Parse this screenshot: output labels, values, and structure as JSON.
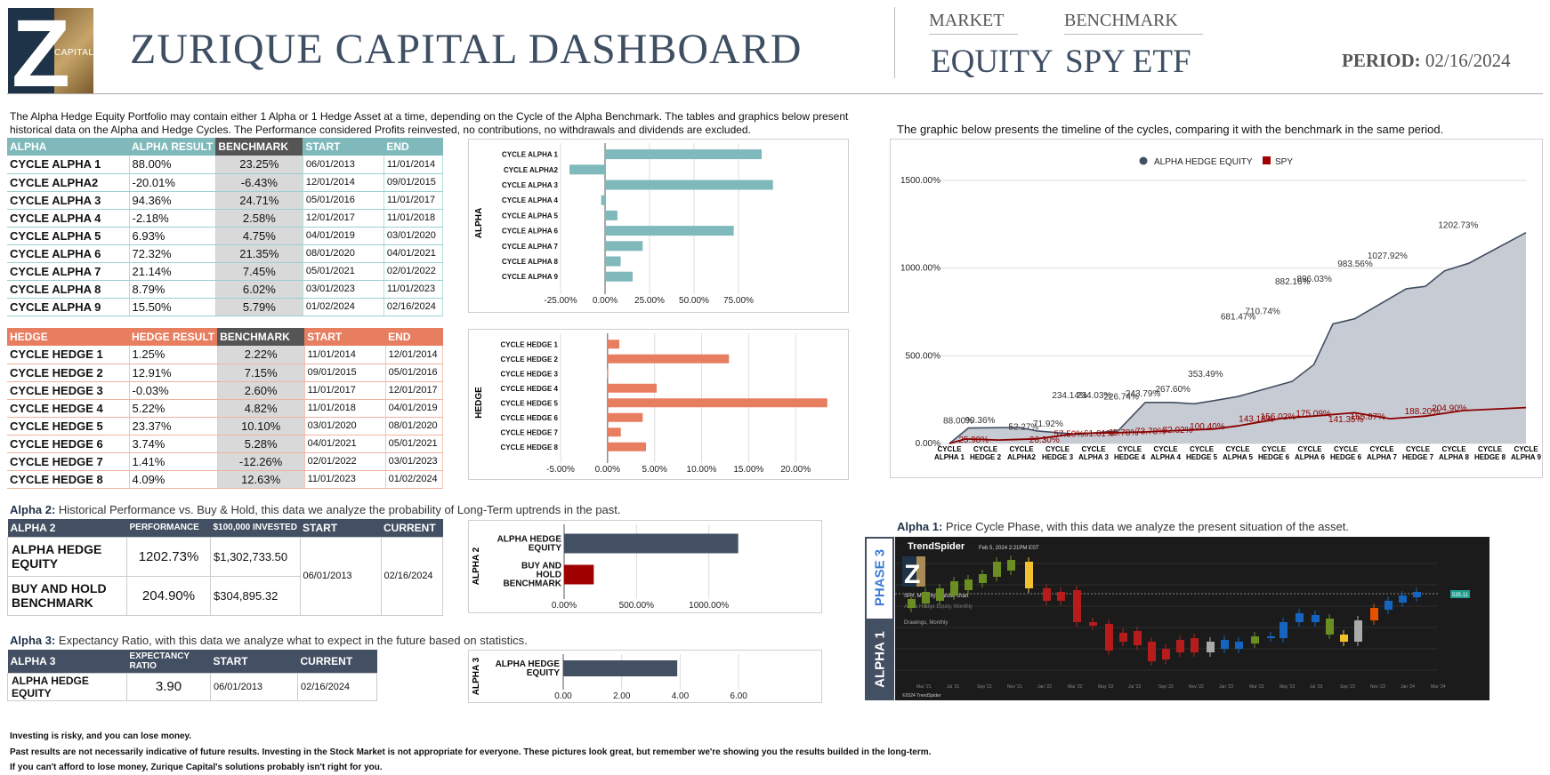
{
  "header": {
    "title": "ZURIQUE CAPITAL DASHBOARD",
    "logo_text": "CAPITAL",
    "market_label": "MARKET",
    "market_value": "EQUITY",
    "benchmark_label": "BENCHMARK",
    "benchmark_value": "SPY ETF",
    "period_label": "PERIOD:",
    "period_value": "02/16/2024"
  },
  "intro_text": "The Alpha Hedge Equity Portfolio may contain either 1 Alpha or 1 Hedge Asset at a time, depending on the Cycle of the Alpha Benchmark. The tables and graphics below present historical data on the Alpha and Hedge Cycles. The Performance considered Profits reinvested, no contributions, no withdrawals and dividends are excluded.",
  "timeline_text": "The graphic below presents the timeline of the cycles, comparing it with the benchmark in the same period.",
  "alpha_table": {
    "headers": [
      "ALPHA",
      "ALPHA RESULT",
      "BENCHMARK",
      "START",
      "END"
    ],
    "rows": [
      [
        "CYCLE ALPHA 1",
        "88.00%",
        "23.25%",
        "06/01/2013",
        "11/01/2014"
      ],
      [
        "CYCLE ALPHA2",
        "-20.01%",
        "-6.43%",
        "12/01/2014",
        "09/01/2015"
      ],
      [
        "CYCLE ALPHA 3",
        "94.36%",
        "24.71%",
        "05/01/2016",
        "11/01/2017"
      ],
      [
        "CYCLE ALPHA 4",
        "-2.18%",
        "2.58%",
        "12/01/2017",
        "11/01/2018"
      ],
      [
        "CYCLE ALPHA 5",
        "6.93%",
        "4.75%",
        "04/01/2019",
        "03/01/2020"
      ],
      [
        "CYCLE ALPHA 6",
        "72.32%",
        "21.35%",
        "08/01/2020",
        "04/01/2021"
      ],
      [
        "CYCLE ALPHA 7",
        "21.14%",
        "7.45%",
        "05/01/2021",
        "02/01/2022"
      ],
      [
        "CYCLE ALPHA 8",
        "8.79%",
        "6.02%",
        "03/01/2023",
        "11/01/2023"
      ],
      [
        "CYCLE ALPHA 9",
        "15.50%",
        "5.79%",
        "01/02/2024",
        "02/16/2024"
      ]
    ]
  },
  "hedge_table": {
    "headers": [
      "HEDGE",
      "HEDGE RESULT",
      "BENCHMARK",
      "START",
      "END"
    ],
    "rows": [
      [
        "CYCLE HEDGE 1",
        "1.25%",
        "2.22%",
        "11/01/2014",
        "12/01/2014"
      ],
      [
        "CYCLE HEDGE 2",
        "12.91%",
        "7.15%",
        "09/01/2015",
        "05/01/2016"
      ],
      [
        "CYCLE HEDGE 3",
        "-0.03%",
        "2.60%",
        "11/01/2017",
        "12/01/2017"
      ],
      [
        "CYCLE HEDGE 4",
        "5.22%",
        "4.82%",
        "11/01/2018",
        "04/01/2019"
      ],
      [
        "CYCLE HEDGE 5",
        "23.37%",
        "10.10%",
        "03/01/2020",
        "08/01/2020"
      ],
      [
        "CYCLE HEDGE 6",
        "3.74%",
        "5.28%",
        "04/01/2021",
        "05/01/2021"
      ],
      [
        "CYCLE HEDGE 7",
        "1.41%",
        "-12.26%",
        "02/01/2022",
        "03/01/2023"
      ],
      [
        "CYCLE HEDGE 8",
        "4.09%",
        "12.63%",
        "11/01/2023",
        "01/02/2024"
      ]
    ]
  },
  "alpha2": {
    "title_bold": "Alpha 2:",
    "title_rest": " Historical Performance vs. Buy & Hold, this data we analyze the probability of Long-Term uptrends in the past.",
    "headers": [
      "ALPHA 2",
      "PERFORMANCE",
      "$100,000 INVESTED",
      "START",
      "CURRENT"
    ],
    "rows": [
      [
        "ALPHA HEDGE EQUITY",
        "1202.73%",
        "$1,302,733.50"
      ],
      [
        "BUY AND HOLD BENCHMARK",
        "204.90%",
        "$304,895.32"
      ]
    ],
    "start": "06/01/2013",
    "current": "02/16/2024"
  },
  "alpha3": {
    "title_bold": "Alpha 3:",
    "title_rest": " Expectancy Ratio, with this data we analyze what to expect in the future based on statistics.",
    "headers": [
      "ALPHA 3",
      "EXPECTANCY RATIO",
      "START",
      "CURRENT"
    ],
    "row": [
      "ALPHA HEDGE EQUITY",
      "3.90",
      "06/01/2013",
      "02/16/2024"
    ]
  },
  "alpha1": {
    "title_bold": "Alpha 1:",
    "title_rest": " Price Cycle Phase, with this data we analyze the present situation of the asset.",
    "phase_label": "PHASE 3",
    "alpha_label": "ALPHA 1",
    "brand": "TrendSpider",
    "brand_date": "Feb 5, 2024 2:21PM EST",
    "chart_caption": "SPY, Monthly, Candle chart",
    "legend1": "Alpha Hedge Equity, Monthly",
    "legend2": "Drawings, Monthly",
    "copyright": "©2024 TrendSpider",
    "price_badge": "535.11",
    "x_ticks": [
      "Mar '21",
      "Jul '21",
      "Sep '21",
      "Nov '21",
      "Jan '22",
      "Mar '22",
      "May '22",
      "Jul '22",
      "Sep '22",
      "Nov '22",
      "Jan '23",
      "Mar '23",
      "May '23",
      "Jul '23",
      "Sep '23",
      "Nov '23",
      "Jan '24",
      "Mar '24"
    ]
  },
  "footer": [
    "Investing is risky, and you can lose money.",
    "Past results are not necessarily indicative of future results. Investing in the Stock Market is not appropriate for everyone. These pictures look great, but remember we're showing you the results builded in the long-term.",
    "If you can't afford to lose money, Zurique Capital's solutions probably isn't right for you."
  ],
  "chart_data": [
    {
      "type": "bar",
      "orientation": "horizontal",
      "ylabel": "ALPHA",
      "categories": [
        "CYCLE ALPHA 1",
        "CYCLE ALPHA2",
        "CYCLE ALPHA 3",
        "CYCLE ALPHA 4",
        "CYCLE ALPHA 5",
        "CYCLE ALPHA 6",
        "CYCLE ALPHA 7",
        "CYCLE ALPHA 8",
        "CYCLE ALPHA 9"
      ],
      "values": [
        88.0,
        -20.01,
        94.36,
        -2.18,
        6.93,
        72.32,
        21.14,
        8.79,
        15.5
      ],
      "xlim": [
        -25,
        100
      ],
      "x_ticks": [
        "-25.00%",
        "0.00%",
        "25.00%",
        "50.00%",
        "75.00%"
      ],
      "tick_values": [
        -25,
        0,
        25,
        50,
        75
      ],
      "color": "#7fb9bb"
    },
    {
      "type": "bar",
      "orientation": "horizontal",
      "ylabel": "HEDGE",
      "categories": [
        "CYCLE HEDGE 1",
        "CYCLE HEDGE 2",
        "CYCLE HEDGE 3",
        "CYCLE HEDGE 4",
        "CYCLE HEDGE 5",
        "CYCLE HEDGE 6",
        "CYCLE HEDGE 7",
        "CYCLE HEDGE 8"
      ],
      "values": [
        1.25,
        12.91,
        -0.03,
        5.22,
        23.37,
        3.74,
        1.41,
        4.09
      ],
      "xlim": [
        -5,
        25
      ],
      "x_ticks": [
        "-5.00%",
        "0.00%",
        "5.00%",
        "10.00%",
        "15.00%",
        "20.00%"
      ],
      "tick_values": [
        -5,
        0,
        5,
        10,
        15,
        20
      ],
      "color": "#e87e60"
    },
    {
      "type": "line",
      "legend": [
        "ALPHA HEDGE EQUITY",
        "SPY"
      ],
      "legend_position": "top",
      "categories": [
        "CYCLE ALPHA 1",
        "CYCLE HEDGE 2",
        "CYCLE ALPHA2",
        "CYCLE HEDGE 3",
        "CYCLE ALPHA 3",
        "CYCLE HEDGE 4",
        "CYCLE ALPHA 4",
        "CYCLE HEDGE 5",
        "CYCLE ALPHA 5",
        "CYCLE HEDGE 6",
        "CYCLE ALPHA 6",
        "CYCLE HEDGE 6",
        "CYCLE ALPHA 7",
        "CYCLE HEDGE 7",
        "CYCLE ALPHA 8",
        "CYCLE HEDGE 8",
        "CYCLE ALPHA 9"
      ],
      "series": [
        {
          "name": "ALPHA HEDGE EQUITY",
          "color": "#434f62",
          "points": [
            [
              0,
              0
            ],
            [
              0.35,
              88.0
            ],
            [
              0.9,
              90.36
            ],
            [
              1.3,
              91
            ],
            [
              1.6,
              71.92
            ],
            [
              2.35,
              52.27
            ],
            [
              3.1,
              71.92
            ],
            [
              3.6,
              234.14
            ],
            [
              4.1,
              234.03
            ],
            [
              4.5,
              226.74
            ],
            [
              4.85,
              243.79
            ],
            [
              5.3,
              267.6
            ],
            [
              6.3,
              353.49
            ],
            [
              6.7,
              450
            ],
            [
              7.05,
              681.47
            ],
            [
              7.45,
              710.74
            ],
            [
              8.4,
              882.16
            ],
            [
              8.75,
              896.03
            ],
            [
              9.1,
              983.56
            ],
            [
              9.55,
              1027.92
            ],
            [
              10.6,
              1202.73
            ]
          ],
          "labels": [
            [
              0.05,
              88.0,
              "88.00%"
            ],
            [
              0.45,
              90.36,
              "90.36%"
            ],
            [
              1.25,
              52.27,
              "52.27%"
            ],
            [
              1.7,
              71.92,
              "71.92%"
            ],
            [
              2.05,
              234.14,
              "234.14%"
            ],
            [
              2.5,
              234.03,
              "234.03%"
            ],
            [
              3.0,
              226.74,
              "226.74%"
            ],
            [
              3.4,
              243.79,
              "243.79%"
            ],
            [
              3.95,
              267.6,
              "267.60%"
            ],
            [
              4.55,
              353.49,
              "353.49%"
            ],
            [
              5.15,
              681.47,
              "681.47%"
            ],
            [
              5.6,
              710.74,
              "710.74%"
            ],
            [
              6.15,
              882.16,
              "882.16%"
            ],
            [
              6.55,
              896.03,
              "896.03%"
            ],
            [
              7.3,
              983.56,
              "983.56%"
            ],
            [
              7.85,
              1027.92,
              "1027.92%"
            ],
            [
              9.15,
              1202.73,
              "1202.73%"
            ]
          ]
        },
        {
          "name": "SPY",
          "color": "#8b0000",
          "points": [
            [
              0,
              0
            ],
            [
              0.3,
              25.98
            ],
            [
              0.9,
              20
            ],
            [
              1.6,
              26.3
            ],
            [
              2.35,
              57.5
            ],
            [
              3.1,
              61.61
            ],
            [
              3.6,
              65.78
            ],
            [
              4.2,
              73.78
            ],
            [
              4.85,
              82.02
            ],
            [
              5.3,
              100.4
            ],
            [
              6.1,
              143.18
            ],
            [
              6.7,
              156.02
            ],
            [
              7.45,
              175.09
            ],
            [
              8.1,
              141.35
            ],
            [
              8.75,
              155.87
            ],
            [
              9.45,
              188.2
            ],
            [
              10.6,
              204.9
            ]
          ],
          "labels": [
            [
              0.3,
              25.98,
              "25.98%"
            ],
            [
              1.6,
              26.3,
              "26.30%"
            ],
            [
              2.05,
              57.5,
              "57.50%"
            ],
            [
              2.6,
              61.61,
              "61.61%"
            ],
            [
              3.05,
              65.78,
              "65.78%"
            ],
            [
              3.55,
              73.78,
              "73.78%"
            ],
            [
              4.05,
              82.02,
              "82.02%"
            ],
            [
              4.55,
              100.4,
              "100.40%"
            ],
            [
              5.45,
              143.18,
              "143.18%"
            ],
            [
              5.85,
              156.02,
              "156.02%"
            ],
            [
              6.5,
              175.09,
              "175.09%"
            ],
            [
              7.1,
              141.35,
              "141.35%"
            ],
            [
              7.5,
              155.87,
              "155.87%"
            ],
            [
              8.5,
              188.2,
              "188.20%"
            ],
            [
              9.0,
              204.9,
              "204.90%"
            ]
          ]
        }
      ],
      "ylim": [
        0,
        1500
      ],
      "y_ticks": [
        "0.00%",
        "500.00%",
        "1000.00%",
        "1500.00%"
      ],
      "tick_values": [
        0,
        500,
        1000,
        1500
      ],
      "x_ticks": [
        "CYCLE ALPHA 1",
        "CYCLE HEDGE 2",
        "CYCLE ALPHA2",
        "CYCLE HEDGE 3",
        "CYCLE ALPHA 3",
        "CYCLE HEDGE 4",
        "CYCLE ALPHA 4",
        "CYCLE HEDGE 5",
        "CYCLE ALPHA 5",
        "CYCLE HEDGE 6",
        "CYCLE ALPHA 6",
        "CYCLE HEDGE 6",
        "CYCLE ALPHA 7",
        "CYCLE HEDGE 7",
        "CYCLE ALPHA 8",
        "CYCLE HEDGE 8",
        "CYCLE ALPHA 9"
      ],
      "grid": true
    },
    {
      "type": "bar",
      "orientation": "horizontal",
      "ylabel": "ALPHA 2",
      "categories": [
        "ALPHA HEDGE EQUITY",
        "BUY AND HOLD BENCHMARK"
      ],
      "values": [
        1202.73,
        204.9
      ],
      "colors": [
        "#434f62",
        "#a00000"
      ],
      "xlim": [
        0,
        1500
      ],
      "x_ticks": [
        "0.00%",
        "500.00%",
        "1000.00%"
      ],
      "tick_values": [
        0,
        500,
        1000
      ]
    },
    {
      "type": "bar",
      "orientation": "horizontal",
      "ylabel": "ALPHA 3",
      "categories": [
        "ALPHA HEDGE EQUITY"
      ],
      "values": [
        3.9
      ],
      "colors": [
        "#434f62"
      ],
      "xlim": [
        0,
        7
      ],
      "x_ticks": [
        "0.00",
        "2.00",
        "4.00",
        "6.00"
      ],
      "tick_values": [
        0,
        2,
        4,
        6
      ]
    }
  ]
}
